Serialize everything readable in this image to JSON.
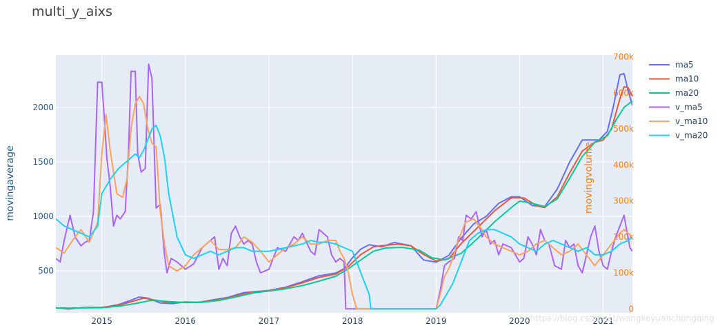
{
  "chart_data": {
    "type": "line",
    "title": "multi_y_aixs",
    "ylabel": "movingaverage",
    "y2label": "movingvolume",
    "xlim": [
      2014.45,
      2021.35
    ],
    "ylim": [
      115,
      2480
    ],
    "y2lim": [
      -11000,
      705000
    ],
    "x_ticks": [
      2015,
      2016,
      2017,
      2018,
      2019,
      2020,
      2021
    ],
    "y_ticks": [
      500,
      1000,
      1500,
      2000
    ],
    "y2_ticks": [
      0,
      100000,
      200000,
      300000,
      400000,
      500000,
      600000,
      700000
    ],
    "y2_tick_labels": [
      "0",
      "100k",
      "200k",
      "300k",
      "400k",
      "500k",
      "600k",
      "700k"
    ],
    "grid": true,
    "background": "#e5ecf6",
    "legend_position": "right",
    "watermark": "https://blog.csdn.net/wangkeyuanchongqing",
    "series": [
      {
        "name": "ma5",
        "axis": "y",
        "color": "#636efa",
        "x": [
          2014.45,
          2014.6,
          2014.8,
          2015.0,
          2015.2,
          2015.35,
          2015.45,
          2015.55,
          2015.7,
          2015.85,
          2016.0,
          2016.15,
          2016.3,
          2016.5,
          2016.7,
          2016.85,
          2017.0,
          2017.2,
          2017.4,
          2017.6,
          2017.8,
          2017.9,
          2018.0,
          2018.1,
          2018.2,
          2018.35,
          2018.5,
          2018.7,
          2018.85,
          2019.0,
          2019.15,
          2019.3,
          2019.45,
          2019.6,
          2019.75,
          2019.9,
          2020.0,
          2020.15,
          2020.3,
          2020.45,
          2020.6,
          2020.75,
          2020.85,
          2020.95,
          2021.05,
          2021.12,
          2021.2,
          2021.25,
          2021.3,
          2021.35
        ],
        "y": [
          160,
          150,
          165,
          162,
          190,
          230,
          260,
          250,
          205,
          200,
          215,
          210,
          230,
          255,
          300,
          310,
          320,
          350,
          400,
          455,
          480,
          520,
          620,
          700,
          740,
          720,
          760,
          730,
          600,
          580,
          640,
          800,
          930,
          1000,
          1120,
          1180,
          1180,
          1100,
          1090,
          1250,
          1500,
          1700,
          1700,
          1700,
          1780,
          2000,
          2300,
          2310,
          2150,
          2020
        ]
      },
      {
        "name": "ma10",
        "axis": "y",
        "color": "#ef553b",
        "x": [
          2014.45,
          2014.6,
          2014.8,
          2015.0,
          2015.2,
          2015.35,
          2015.5,
          2015.65,
          2015.8,
          2016.0,
          2016.15,
          2016.3,
          2016.5,
          2016.7,
          2016.85,
          2017.0,
          2017.2,
          2017.4,
          2017.6,
          2017.8,
          2017.95,
          2018.1,
          2018.25,
          2018.4,
          2018.55,
          2018.7,
          2018.85,
          2019.0,
          2019.15,
          2019.3,
          2019.5,
          2019.7,
          2019.9,
          2020.05,
          2020.2,
          2020.3,
          2020.45,
          2020.6,
          2020.75,
          2020.9,
          2021.0,
          2021.1,
          2021.2,
          2021.25,
          2021.3,
          2021.35
        ],
        "y": [
          158,
          155,
          162,
          165,
          185,
          215,
          250,
          230,
          210,
          212,
          212,
          225,
          250,
          290,
          305,
          318,
          345,
          390,
          440,
          470,
          540,
          650,
          720,
          735,
          745,
          730,
          650,
          590,
          610,
          750,
          900,
          1050,
          1170,
          1170,
          1100,
          1080,
          1180,
          1400,
          1600,
          1680,
          1700,
          1800,
          2080,
          2190,
          2180,
          2100
        ]
      },
      {
        "name": "ma20",
        "axis": "y",
        "color": "#00cc96",
        "x": [
          2014.45,
          2014.6,
          2014.8,
          2015.0,
          2015.2,
          2015.4,
          2015.6,
          2015.8,
          2016.0,
          2016.2,
          2016.4,
          2016.6,
          2016.8,
          2017.0,
          2017.2,
          2017.4,
          2017.6,
          2017.8,
          2017.95,
          2018.1,
          2018.25,
          2018.4,
          2018.6,
          2018.8,
          2018.95,
          2019.1,
          2019.3,
          2019.5,
          2019.7,
          2019.9,
          2020.0,
          2020.15,
          2020.3,
          2020.45,
          2020.6,
          2020.75,
          2020.9,
          2021.05,
          2021.15,
          2021.25,
          2021.35
        ],
        "y": [
          160,
          158,
          160,
          162,
          175,
          200,
          230,
          218,
          208,
          212,
          228,
          260,
          295,
          315,
          335,
          365,
          405,
          450,
          520,
          600,
          680,
          710,
          715,
          690,
          620,
          600,
          660,
          800,
          950,
          1080,
          1140,
          1120,
          1090,
          1160,
          1350,
          1550,
          1680,
          1740,
          1880,
          2000,
          2060
        ]
      },
      {
        "name": "v_ma5",
        "axis": "y2",
        "color": "#ab63fa",
        "x": [
          2014.45,
          2014.5,
          2014.55,
          2014.62,
          2014.68,
          2014.75,
          2014.8,
          2014.85,
          2014.9,
          2014.95,
          2015.0,
          2015.03,
          2015.06,
          2015.1,
          2015.14,
          2015.18,
          2015.22,
          2015.28,
          2015.32,
          2015.35,
          2015.4,
          2015.43,
          2015.47,
          2015.52,
          2015.56,
          2015.6,
          2015.65,
          2015.7,
          2015.75,
          2015.78,
          2015.83,
          2015.9,
          2016.0,
          2016.1,
          2016.2,
          2016.25,
          2016.3,
          2016.35,
          2016.4,
          2016.45,
          2016.5,
          2016.55,
          2016.6,
          2016.65,
          2016.7,
          2016.75,
          2016.8,
          2016.85,
          2016.9,
          2017.0,
          2017.1,
          2017.2,
          2017.3,
          2017.35,
          2017.4,
          2017.5,
          2017.55,
          2017.6,
          2017.7,
          2017.75,
          2017.8,
          2017.85,
          2017.9,
          2017.92,
          2017.95,
          2018.0,
          2018.3,
          2018.6,
          2018.9,
          2019.0,
          2019.05,
          2019.1,
          2019.15,
          2019.22,
          2019.27,
          2019.32,
          2019.36,
          2019.42,
          2019.48,
          2019.55,
          2019.6,
          2019.65,
          2019.7,
          2019.75,
          2019.8,
          2019.9,
          2020.0,
          2020.05,
          2020.1,
          2020.15,
          2020.2,
          2020.25,
          2020.3,
          2020.35,
          2020.42,
          2020.5,
          2020.55,
          2020.6,
          2020.65,
          2020.7,
          2020.75,
          2020.8,
          2020.85,
          2020.9,
          2020.95,
          2021.0,
          2021.05,
          2021.1,
          2021.15,
          2021.2,
          2021.25,
          2021.28,
          2021.32,
          2021.35
        ],
        "y": [
          140000,
          130000,
          190000,
          260000,
          200000,
          175000,
          185000,
          190000,
          270000,
          630000,
          630000,
          530000,
          420000,
          340000,
          230000,
          260000,
          250000,
          270000,
          440000,
          660000,
          660000,
          430000,
          380000,
          390000,
          680000,
          640000,
          280000,
          290000,
          150000,
          100000,
          140000,
          130000,
          110000,
          125000,
          170000,
          180000,
          190000,
          200000,
          110000,
          140000,
          120000,
          210000,
          230000,
          200000,
          180000,
          190000,
          180000,
          130000,
          100000,
          110000,
          170000,
          160000,
          200000,
          190000,
          210000,
          160000,
          150000,
          220000,
          200000,
          150000,
          130000,
          140000,
          130000,
          0,
          0,
          0,
          0,
          0,
          0,
          0,
          50000,
          120000,
          130000,
          140000,
          200000,
          190000,
          260000,
          250000,
          270000,
          200000,
          220000,
          180000,
          190000,
          150000,
          180000,
          170000,
          130000,
          140000,
          200000,
          180000,
          150000,
          220000,
          190000,
          180000,
          120000,
          110000,
          190000,
          170000,
          180000,
          120000,
          100000,
          150000,
          200000,
          230000,
          160000,
          120000,
          110000,
          160000,
          200000,
          230000,
          260000,
          220000,
          170000,
          160000
        ]
      },
      {
        "name": "v_ma10",
        "axis": "y2",
        "color": "#ffa15a",
        "x": [
          2014.45,
          2014.55,
          2014.65,
          2014.75,
          2014.85,
          2014.95,
          2015.0,
          2015.05,
          2015.1,
          2015.18,
          2015.25,
          2015.3,
          2015.35,
          2015.4,
          2015.45,
          2015.5,
          2015.55,
          2015.6,
          2015.65,
          2015.7,
          2015.75,
          2015.8,
          2015.9,
          2016.0,
          2016.1,
          2016.2,
          2016.3,
          2016.4,
          2016.5,
          2016.6,
          2016.7,
          2016.8,
          2016.9,
          2017.0,
          2017.1,
          2017.2,
          2017.3,
          2017.4,
          2017.5,
          2017.6,
          2017.7,
          2017.8,
          2017.85,
          2017.9,
          2017.95,
          2018.0,
          2018.05,
          2018.3,
          2018.7,
          2019.0,
          2019.05,
          2019.1,
          2019.15,
          2019.2,
          2019.25,
          2019.3,
          2019.35,
          2019.45,
          2019.55,
          2019.6,
          2019.7,
          2019.8,
          2019.9,
          2020.0,
          2020.1,
          2020.2,
          2020.3,
          2020.4,
          2020.5,
          2020.6,
          2020.7,
          2020.8,
          2020.9,
          2021.0,
          2021.1,
          2021.2,
          2021.25,
          2021.3,
          2021.35
        ],
        "y": [
          170000,
          155000,
          190000,
          220000,
          185000,
          240000,
          430000,
          540000,
          440000,
          320000,
          310000,
          360000,
          500000,
          570000,
          590000,
          570000,
          500000,
          460000,
          450000,
          270000,
          180000,
          120000,
          105000,
          120000,
          150000,
          170000,
          190000,
          165000,
          165000,
          170000,
          200000,
          185000,
          160000,
          130000,
          150000,
          170000,
          180000,
          200000,
          180000,
          180000,
          190000,
          190000,
          160000,
          140000,
          100000,
          40000,
          0,
          0,
          0,
          0,
          40000,
          90000,
          110000,
          140000,
          180000,
          210000,
          240000,
          250000,
          220000,
          200000,
          180000,
          170000,
          160000,
          150000,
          160000,
          180000,
          190000,
          170000,
          150000,
          160000,
          180000,
          150000,
          120000,
          150000,
          180000,
          210000,
          220000,
          210000,
          200000
        ]
      },
      {
        "name": "v_ma20",
        "axis": "y2",
        "color": "#19d3f3",
        "x": [
          2014.45,
          2014.55,
          2014.65,
          2014.75,
          2014.85,
          2014.95,
          2015.0,
          2015.1,
          2015.2,
          2015.3,
          2015.4,
          2015.45,
          2015.5,
          2015.55,
          2015.6,
          2015.65,
          2015.7,
          2015.75,
          2015.8,
          2015.9,
          2016.0,
          2016.1,
          2016.2,
          2016.3,
          2016.4,
          2016.5,
          2016.6,
          2016.7,
          2016.8,
          2016.9,
          2017.0,
          2017.1,
          2017.2,
          2017.3,
          2017.4,
          2017.5,
          2017.6,
          2017.7,
          2017.8,
          2017.9,
          2018.0,
          2018.1,
          2018.2,
          2018.22,
          2018.5,
          2019.0,
          2019.05,
          2019.1,
          2019.2,
          2019.3,
          2019.4,
          2019.5,
          2019.6,
          2019.7,
          2019.8,
          2019.9,
          2020.0,
          2020.1,
          2020.2,
          2020.3,
          2020.4,
          2020.5,
          2020.6,
          2020.7,
          2020.8,
          2020.9,
          2021.0,
          2021.1,
          2021.2,
          2021.3,
          2021.35
        ],
        "y": [
          250000,
          230000,
          220000,
          210000,
          200000,
          230000,
          320000,
          360000,
          390000,
          410000,
          430000,
          420000,
          440000,
          470000,
          500000,
          510000,
          480000,
          420000,
          320000,
          200000,
          150000,
          140000,
          150000,
          160000,
          150000,
          160000,
          170000,
          170000,
          160000,
          160000,
          160000,
          165000,
          170000,
          175000,
          180000,
          190000,
          185000,
          185000,
          180000,
          170000,
          160000,
          100000,
          40000,
          0,
          0,
          0,
          10000,
          30000,
          70000,
          130000,
          190000,
          210000,
          220000,
          220000,
          210000,
          200000,
          180000,
          170000,
          160000,
          180000,
          190000,
          180000,
          170000,
          160000,
          170000,
          150000,
          150000,
          160000,
          180000,
          190000,
          200000
        ]
      }
    ]
  }
}
